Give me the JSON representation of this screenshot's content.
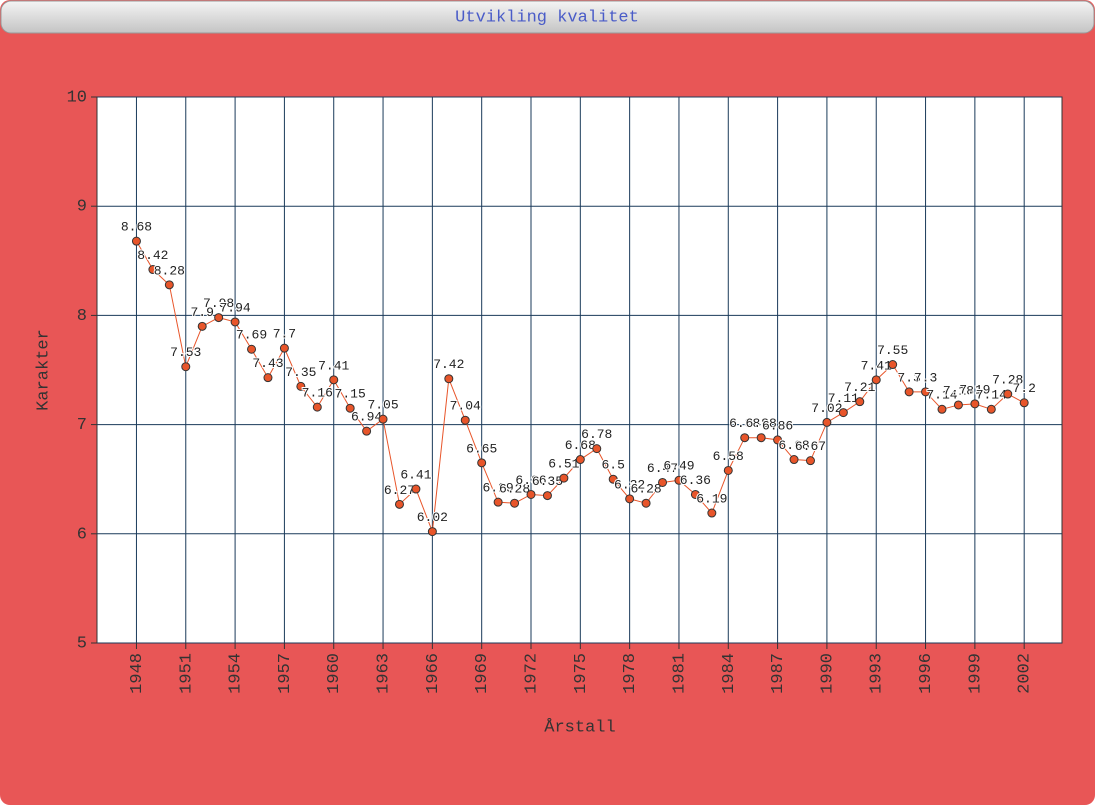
{
  "window_title": "Utvikling kvalitet",
  "chart_data": {
    "type": "line",
    "x_label": "Årstall",
    "y_label": "Karakter",
    "x": [
      1948,
      1949,
      1950,
      1951,
      1952,
      1953,
      1954,
      1955,
      1956,
      1957,
      1958,
      1959,
      1960,
      1961,
      1962,
      1963,
      1964,
      1965,
      1966,
      1967,
      1968,
      1969,
      1970,
      1971,
      1972,
      1973,
      1974,
      1975,
      1976,
      1977,
      1978,
      1979,
      1980,
      1981,
      1982,
      1983,
      1984,
      1985,
      1986,
      1987,
      1988,
      1989,
      1990,
      1991,
      1992,
      1993,
      1994,
      1995,
      1996,
      1997,
      1998,
      1999,
      2000,
      2001,
      2002
    ],
    "series": [
      {
        "name": "Karakter",
        "color": "#e8552a",
        "values": [
          8.68,
          8.42,
          8.28,
          7.53,
          7.9,
          7.98,
          7.94,
          7.69,
          7.43,
          7.7,
          7.35,
          7.16,
          7.41,
          7.15,
          6.94,
          7.05,
          6.27,
          6.41,
          6.02,
          7.42,
          7.04,
          6.65,
          6.29,
          6.28,
          6.36,
          6.35,
          6.51,
          6.68,
          6.78,
          6.5,
          6.32,
          6.28,
          6.47,
          6.49,
          6.36,
          6.19,
          6.58,
          6.88,
          6.88,
          6.86,
          6.68,
          6.67,
          7.02,
          7.11,
          7.21,
          7.41,
          7.55,
          7.3,
          7.3,
          7.14,
          7.18,
          7.19,
          7.14,
          7.28,
          7.2
        ]
      }
    ],
    "xlim": [
      1945.6,
      2004.3
    ],
    "xticks": [
      1948,
      1951,
      1954,
      1957,
      1960,
      1963,
      1966,
      1969,
      1972,
      1975,
      1978,
      1981,
      1984,
      1987,
      1990,
      1993,
      1996,
      1999,
      2002
    ],
    "ylim": [
      5,
      10
    ],
    "yticks": [
      5,
      6,
      7,
      8,
      9,
      10
    ],
    "grid": true
  }
}
